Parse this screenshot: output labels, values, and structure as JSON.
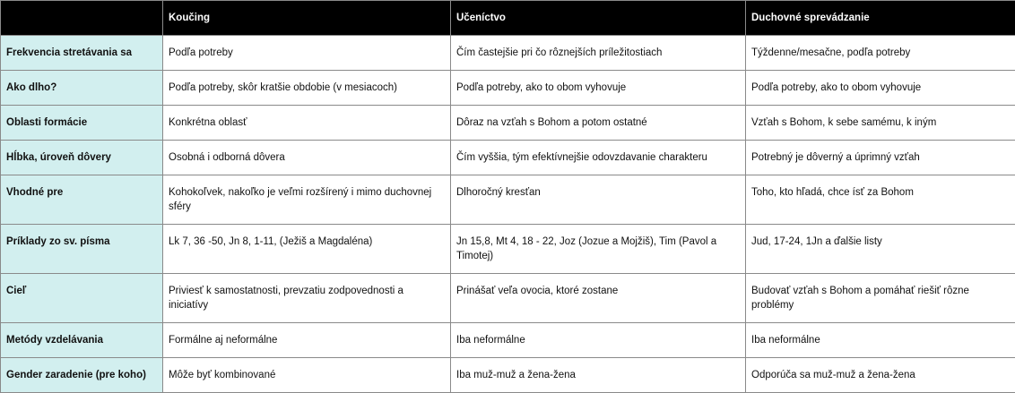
{
  "table": {
    "headers": [
      "",
      "Koučing",
      "Učeníctvo",
      "Duchovné sprevádzanie"
    ],
    "rows": [
      {
        "label": "Frekvencia stretávania sa",
        "cells": [
          "Podľa potreby",
          "Čím častejšie pri čo rôznejších príležitostiach",
          "Týždenne/mesačne, podľa potreby"
        ]
      },
      {
        "label": "Ako dlho?",
        "cells": [
          "Podľa potreby, skôr kratšie obdobie (v mesiacoch)",
          "Podľa potreby, ako to obom vyhovuje",
          "Podľa potreby, ako to obom vyhovuje"
        ]
      },
      {
        "label": "Oblasti formácie",
        "cells": [
          "Konkrétna oblasť",
          "Dôraz na vzťah s Bohom a potom ostatné",
          "Vzťah s Bohom, k sebe samému, k iným"
        ]
      },
      {
        "label": "Hĺbka, úroveň dôvery",
        "cells": [
          "Osobná i odborná dôvera",
          "Čím vyššia, tým efektívnejšie odovzdavanie charakteru",
          "Potrebný je dôverný a úprimný vzťah"
        ]
      },
      {
        "label": "Vhodné pre",
        "cells": [
          "Kohokoľvek, nakoľko je veľmi rozšírený i mimo duchovnej sféry",
          "Dlhoročný kresťan",
          "Toho, kto hľadá, chce ísť za Bohom"
        ]
      },
      {
        "label": "Príklady zo sv. písma",
        "cells": [
          "Lk 7, 36 -50, Jn 8, 1-11, (Ježiš a Magdaléna)",
          "Jn 15,8, Mt 4, 18 - 22, Joz (Jozue a Mojžiš), Tim (Pavol a Timotej)",
          "Jud, 17-24, 1Jn a ďalšie listy"
        ]
      },
      {
        "label": "Cieľ",
        "cells": [
          "Priviesť k samostatnosti, prevzatiu zodpovednosti a iniciatívy",
          "Prinášať veľa ovocia, ktoré zostane",
          "Budovať vzťah s Bohom a pomáhať riešiť rôzne problémy"
        ]
      },
      {
        "label": "Metódy vzdelávania",
        "cells": [
          "Formálne aj neformálne",
          "Iba neformálne",
          "Iba neformálne"
        ]
      },
      {
        "label": "Gender zaradenie (pre koho)",
        "cells": [
          "Môže byť kombinované",
          "Iba muž-muž a žena-žena",
          "Odporúča sa muž-muž a žena-žena"
        ]
      }
    ]
  },
  "colors": {
    "header_bg": "#000000",
    "row_label_bg": "#d2efef",
    "border": "#8a8a8a"
  }
}
